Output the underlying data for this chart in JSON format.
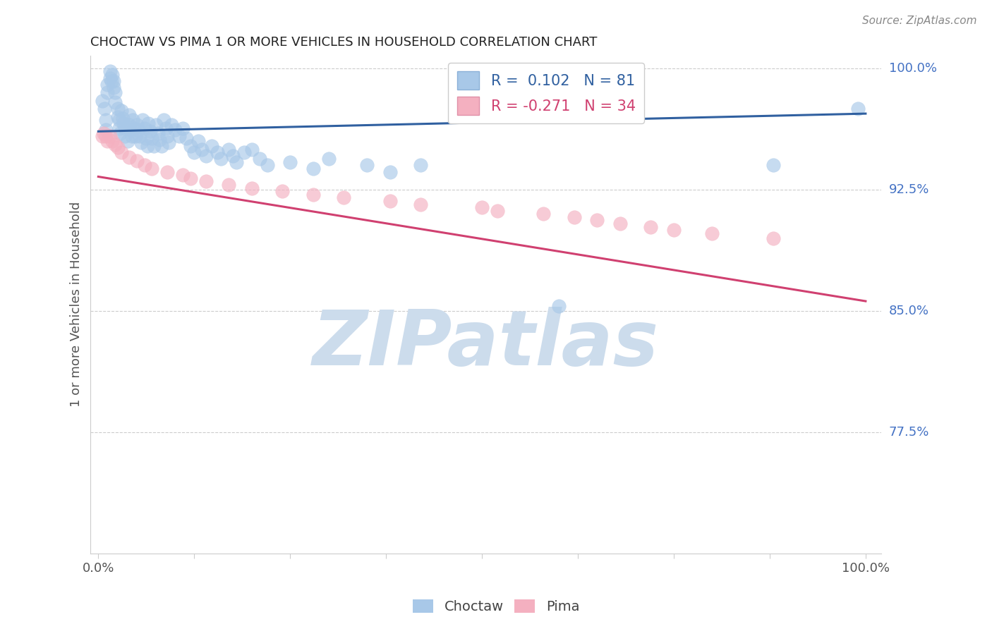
{
  "title": "CHOCTAW VS PIMA 1 OR MORE VEHICLES IN HOUSEHOLD CORRELATION CHART",
  "source": "Source: ZipAtlas.com",
  "ylabel": "1 or more Vehicles in Household",
  "ytick_labels": [
    "100.0%",
    "92.5%",
    "85.0%",
    "77.5%"
  ],
  "ytick_values": [
    1.0,
    0.925,
    0.85,
    0.775
  ],
  "legend_blue_text": "R =  0.102   N = 81",
  "legend_pink_text": "R = -0.271   N = 34",
  "blue_dot_color": "#a8c8e8",
  "pink_dot_color": "#f4b0c0",
  "blue_line_color": "#3060a0",
  "pink_line_color": "#d04070",
  "watermark_text": "ZIPatlas",
  "choctaw_x": [
    0.005,
    0.008,
    0.01,
    0.01,
    0.012,
    0.012,
    0.015,
    0.015,
    0.017,
    0.018,
    0.02,
    0.02,
    0.022,
    0.022,
    0.025,
    0.025,
    0.027,
    0.027,
    0.028,
    0.03,
    0.032,
    0.033,
    0.035,
    0.035,
    0.038,
    0.04,
    0.04,
    0.042,
    0.044,
    0.045,
    0.047,
    0.048,
    0.05,
    0.052,
    0.054,
    0.056,
    0.058,
    0.06,
    0.062,
    0.064,
    0.065,
    0.068,
    0.07,
    0.072,
    0.075,
    0.078,
    0.08,
    0.082,
    0.085,
    0.088,
    0.09,
    0.092,
    0.095,
    0.1,
    0.105,
    0.11,
    0.115,
    0.12,
    0.125,
    0.13,
    0.135,
    0.14,
    0.148,
    0.155,
    0.16,
    0.17,
    0.175,
    0.18,
    0.19,
    0.2,
    0.21,
    0.22,
    0.25,
    0.28,
    0.3,
    0.35,
    0.38,
    0.42,
    0.6,
    0.88,
    0.99
  ],
  "choctaw_y": [
    0.98,
    0.975,
    0.968,
    0.962,
    0.99,
    0.985,
    0.998,
    0.994,
    0.992,
    0.996,
    0.992,
    0.988,
    0.985,
    0.979,
    0.975,
    0.97,
    0.968,
    0.963,
    0.96,
    0.974,
    0.969,
    0.966,
    0.963,
    0.958,
    0.955,
    0.971,
    0.965,
    0.962,
    0.958,
    0.968,
    0.963,
    0.958,
    0.965,
    0.962,
    0.958,
    0.954,
    0.968,
    0.963,
    0.957,
    0.952,
    0.966,
    0.961,
    0.957,
    0.952,
    0.965,
    0.96,
    0.956,
    0.952,
    0.968,
    0.963,
    0.958,
    0.954,
    0.965,
    0.962,
    0.958,
    0.963,
    0.957,
    0.952,
    0.948,
    0.955,
    0.95,
    0.946,
    0.952,
    0.948,
    0.944,
    0.95,
    0.946,
    0.942,
    0.948,
    0.95,
    0.944,
    0.94,
    0.942,
    0.938,
    0.944,
    0.94,
    0.936,
    0.94,
    0.853,
    0.94,
    0.975
  ],
  "pima_x": [
    0.005,
    0.007,
    0.01,
    0.012,
    0.015,
    0.018,
    0.022,
    0.025,
    0.03,
    0.04,
    0.05,
    0.06,
    0.07,
    0.09,
    0.11,
    0.12,
    0.14,
    0.17,
    0.2,
    0.24,
    0.28,
    0.32,
    0.38,
    0.42,
    0.5,
    0.52,
    0.58,
    0.62,
    0.65,
    0.68,
    0.72,
    0.75,
    0.8,
    0.88
  ],
  "pima_y": [
    0.958,
    0.96,
    0.958,
    0.955,
    0.958,
    0.955,
    0.953,
    0.951,
    0.948,
    0.945,
    0.943,
    0.94,
    0.938,
    0.936,
    0.934,
    0.932,
    0.93,
    0.928,
    0.926,
    0.924,
    0.922,
    0.92,
    0.918,
    0.916,
    0.914,
    0.912,
    0.91,
    0.908,
    0.906,
    0.904,
    0.902,
    0.9,
    0.898,
    0.895
  ],
  "blue_line_x": [
    0.0,
    1.0
  ],
  "blue_line_y": [
    0.961,
    0.972
  ],
  "pink_line_x": [
    0.0,
    1.0
  ],
  "pink_line_y": [
    0.933,
    0.856
  ],
  "ylim": [
    0.7,
    1.008
  ],
  "xlim": [
    -0.01,
    1.02
  ],
  "ytick_color": "#4472c4",
  "grid_color": "#cccccc",
  "title_color": "#222222",
  "source_color": "#888888",
  "label_color": "#555555",
  "watermark_color": "#ccdcec"
}
